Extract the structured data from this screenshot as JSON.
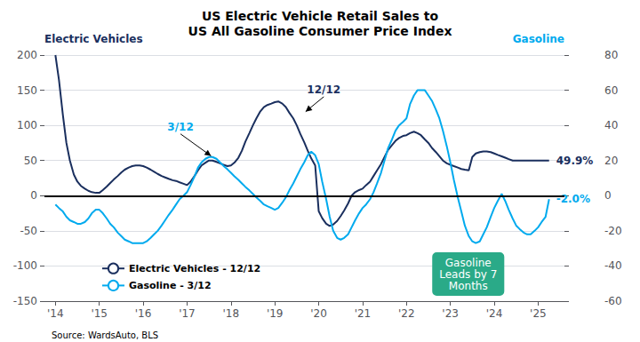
{
  "chart_data": {
    "type": "line",
    "title": "US Electric Vehicle Retail Sales to\nUS All Gasoline Consumer Price Index",
    "ylabel": "Electric Vehicles",
    "y2label": "Gasoline",
    "xlim": [
      2013.75,
      2025.6
    ],
    "xticks": [
      {
        "value": 2014,
        "label": "'14"
      },
      {
        "value": 2015,
        "label": "'15"
      },
      {
        "value": 2016,
        "label": "'16"
      },
      {
        "value": 2017,
        "label": "'17"
      },
      {
        "value": 2018,
        "label": "'18"
      },
      {
        "value": 2019,
        "label": "'19"
      },
      {
        "value": 2020,
        "label": "'20"
      },
      {
        "value": 2021,
        "label": "'21"
      },
      {
        "value": 2022,
        "label": "'22"
      },
      {
        "value": 2023,
        "label": "'23"
      },
      {
        "value": 2024,
        "label": "'24"
      },
      {
        "value": 2025,
        "label": "'25"
      }
    ],
    "ylim": [
      -150,
      200
    ],
    "yticks": [
      -150,
      -100,
      -50,
      0,
      50,
      100,
      150,
      200
    ],
    "y2lim": [
      -60,
      80
    ],
    "y2ticks": [
      -60,
      -40,
      -20,
      0,
      20,
      40,
      60,
      80
    ],
    "grid": true,
    "legend": "lower left",
    "x": [
      2014.0,
      2014.08,
      2014.17,
      2014.25,
      2014.33,
      2014.42,
      2014.5,
      2014.58,
      2014.67,
      2014.75,
      2014.83,
      2014.92,
      2015.0,
      2015.08,
      2015.17,
      2015.25,
      2015.33,
      2015.42,
      2015.5,
      2015.58,
      2015.67,
      2015.75,
      2015.83,
      2015.92,
      2016.0,
      2016.08,
      2016.17,
      2016.25,
      2016.33,
      2016.42,
      2016.5,
      2016.58,
      2016.67,
      2016.75,
      2016.83,
      2016.92,
      2017.0,
      2017.08,
      2017.17,
      2017.25,
      2017.33,
      2017.42,
      2017.5,
      2017.58,
      2017.67,
      2017.75,
      2017.83,
      2017.92,
      2018.0,
      2018.08,
      2018.17,
      2018.25,
      2018.33,
      2018.42,
      2018.5,
      2018.58,
      2018.67,
      2018.75,
      2018.83,
      2018.92,
      2019.0,
      2019.08,
      2019.17,
      2019.25,
      2019.33,
      2019.42,
      2019.5,
      2019.58,
      2019.67,
      2019.75,
      2019.83,
      2019.92,
      2020.0,
      2020.08,
      2020.17,
      2020.25,
      2020.33,
      2020.42,
      2020.5,
      2020.58,
      2020.67,
      2020.75,
      2020.83,
      2020.92,
      2021.0,
      2021.08,
      2021.17,
      2021.25,
      2021.33,
      2021.42,
      2021.5,
      2021.58,
      2021.67,
      2021.75,
      2021.83,
      2021.92,
      2022.0,
      2022.08,
      2022.17,
      2022.25,
      2022.33,
      2022.42,
      2022.5,
      2022.58,
      2022.67,
      2022.75,
      2022.83,
      2022.92,
      2023.0,
      2023.08,
      2023.17,
      2023.25,
      2023.33,
      2023.42,
      2023.5,
      2023.58,
      2023.67,
      2023.75,
      2023.83,
      2023.92,
      2024.0,
      2024.08,
      2024.17,
      2024.25,
      2024.33,
      2024.42,
      2024.5,
      2024.58,
      2024.67,
      2024.75,
      2024.83,
      2024.92,
      2025.0,
      2025.08,
      2025.17,
      2025.25
    ],
    "series": [
      {
        "name": "Electric Vehicles - 12/12",
        "color": "#1a2f5e",
        "axis": "y",
        "end_value": 49.9,
        "end_label": "49.9%",
        "values": [
          200,
          165,
          115,
          75,
          50,
          30,
          20,
          14,
          10,
          7,
          5,
          4,
          4,
          8,
          13,
          18,
          23,
          28,
          33,
          37,
          40,
          42,
          43,
          43,
          42,
          40,
          37,
          34,
          31,
          28,
          26,
          24,
          22,
          21,
          19,
          17,
          15,
          20,
          28,
          36,
          43,
          47,
          50,
          50,
          48,
          46,
          44,
          42,
          43,
          47,
          54,
          64,
          77,
          89,
          100,
          110,
          120,
          126,
          129,
          131,
          133,
          134,
          131,
          126,
          118,
          110,
          100,
          88,
          76,
          64,
          53,
          43,
          -22,
          -32,
          -40,
          -43,
          -41,
          -36,
          -29,
          -21,
          -11,
          0,
          5,
          8,
          10,
          15,
          20,
          28,
          36,
          45,
          55,
          65,
          72,
          78,
          82,
          85,
          86,
          89,
          91,
          89,
          86,
          80,
          75,
          68,
          62,
          56,
          50,
          46,
          44,
          42,
          40,
          38,
          37,
          36,
          55,
          60,
          62,
          63,
          63,
          62,
          60,
          58,
          56,
          54,
          52,
          50,
          50,
          50,
          50,
          49.9,
          49.9,
          49.9,
          49.9,
          49.9,
          49.9,
          49.9
        ]
      },
      {
        "name": "Gasoline - 3/12",
        "color": "#00aaee",
        "axis": "y2",
        "end_value": -2.0,
        "end_label": "-2.0%",
        "values": [
          -5,
          -7,
          -9,
          -12,
          -14,
          -15,
          -16,
          -16,
          -15,
          -13,
          -10,
          -8,
          -8,
          -10,
          -13,
          -16,
          -18,
          -21,
          -23,
          -25,
          -26,
          -27,
          -27,
          -27,
          -27,
          -26,
          -24,
          -22,
          -20,
          -17,
          -14,
          -11,
          -8,
          -5,
          -2,
          0,
          2,
          6,
          11,
          16,
          19,
          21,
          22,
          22,
          21,
          19,
          17,
          15,
          13,
          11,
          9,
          7,
          5,
          3,
          1,
          -1,
          -3,
          -5,
          -6,
          -7,
          -8,
          -7,
          -4,
          -1,
          3,
          7,
          11,
          15,
          19,
          23,
          25,
          23,
          18,
          8,
          -2,
          -12,
          -20,
          -24,
          -25,
          -24,
          -22,
          -18,
          -14,
          -10,
          -7,
          -5,
          -2,
          2,
          7,
          13,
          20,
          27,
          32,
          37,
          40,
          42,
          44,
          52,
          57,
          60,
          60,
          60,
          57,
          54,
          49,
          44,
          37,
          28,
          19,
          9,
          -1,
          -9,
          -17,
          -23,
          -26,
          -27,
          -26,
          -22,
          -18,
          -12,
          -7,
          -3,
          1,
          -3,
          -8,
          -13,
          -17,
          -19,
          -21,
          -22,
          -22,
          -20,
          -18,
          -15,
          -12,
          -2.0
        ]
      }
    ],
    "reference_lines": [
      {
        "y": 0,
        "axis": "y",
        "color": "#000000"
      }
    ],
    "annotations": [
      {
        "text": "3/12",
        "x": 2017.58,
        "y": 22,
        "axis": "y2",
        "color": "#00aaee"
      },
      {
        "text": "12/12",
        "x": 2019.67,
        "y": 118,
        "axis": "y",
        "color": "#1a2f5e"
      }
    ],
    "box": {
      "text": "Gasoline\nLeads by 7\nMonths",
      "color": "#2aaa88"
    },
    "source": "Source: WardsAuto, BLS"
  }
}
